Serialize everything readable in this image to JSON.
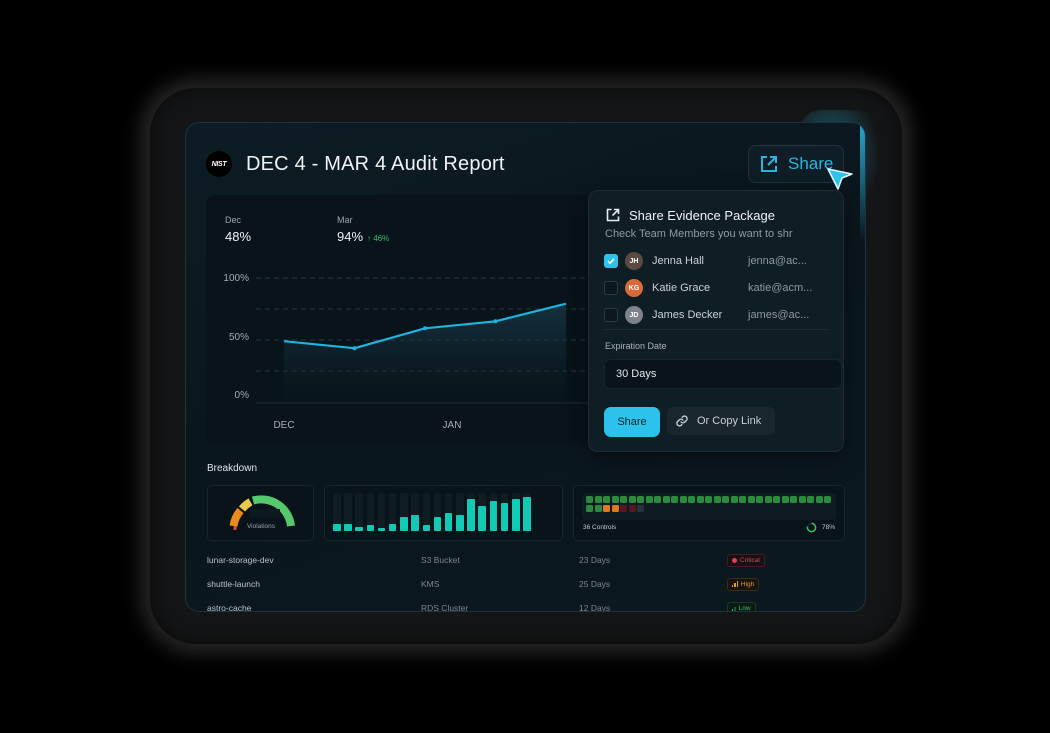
{
  "header": {
    "logo_text": "NIST",
    "title": "DEC 4 - MAR 4 Audit Report",
    "share_button_label": "Share"
  },
  "stats": [
    {
      "label": "Dec",
      "value": "48%"
    },
    {
      "label": "Mar",
      "value": "94%",
      "delta": "46%",
      "delta_direction": "up"
    }
  ],
  "chart_data": {
    "type": "area",
    "title": "",
    "y_ticks": [
      "100%",
      "50%",
      "0%"
    ],
    "x_ticks": [
      "DEC",
      "JAN"
    ],
    "ylim": [
      0,
      100
    ],
    "points": [
      {
        "x": 0,
        "y": 46
      },
      {
        "x": 1,
        "y": 40
      },
      {
        "x": 2,
        "y": 57
      },
      {
        "x": 3,
        "y": 63
      },
      {
        "x": 4,
        "y": 78
      }
    ],
    "grid": "dashed",
    "line_color": "#1fb3e0"
  },
  "share_popup": {
    "title": "Share Evidence Package",
    "subtitle": "Check Team Members you want to shr",
    "members": [
      {
        "name": "Jenna Hall",
        "email": "jenna@ac...",
        "checked": true,
        "initials": "JH",
        "avatar_color": "#5a4a42"
      },
      {
        "name": "Katie Grace",
        "email": "katie@acm...",
        "checked": false,
        "initials": "KG",
        "avatar_color": "#d86a3a"
      },
      {
        "name": "James Decker",
        "email": "james@ac...",
        "checked": false,
        "initials": "JD",
        "avatar_color": "#7d8388"
      }
    ],
    "expiration_label": "Expiration Date",
    "expiration_value": "30 Days",
    "share_label": "Share",
    "copy_link_label": "Or Copy Link"
  },
  "breakdown": {
    "title": "Breakdown",
    "gauge_label": "Violations",
    "bar_values": [
      7,
      7,
      4,
      6,
      3,
      7,
      14,
      16,
      6,
      14,
      18,
      16,
      32,
      25,
      30,
      28,
      32,
      34
    ],
    "bar_max": 38,
    "controls": {
      "label": "36 Controls",
      "percent": "78%",
      "statuses": [
        "pass",
        "pass",
        "pass",
        "pass",
        "pass",
        "pass",
        "pass",
        "pass",
        "pass",
        "pass",
        "pass",
        "pass",
        "pass",
        "pass",
        "pass",
        "pass",
        "pass",
        "pass",
        "pass",
        "pass",
        "pass",
        "pass",
        "pass",
        "pass",
        "pass",
        "pass",
        "pass",
        "pass",
        "pass",
        "pass",
        "pass",
        "warn",
        "warn",
        "fail",
        "fail",
        "none"
      ]
    }
  },
  "resources": [
    {
      "name": "lunar-storage-dev",
      "type": "S3 Bucket",
      "age": "23 Days",
      "severity": "Critical"
    },
    {
      "name": "shuttle-launch",
      "type": "KMS",
      "age": "25 Days",
      "severity": "High"
    },
    {
      "name": "astro-cache",
      "type": "RDS Cluster",
      "age": "12 Days",
      "severity": "Low"
    }
  ],
  "colors": {
    "accent": "#2bc3ec",
    "critical": "#e0405a",
    "high": "#e59a2e",
    "low": "#3bbf6b",
    "bar": "#12c9b4"
  }
}
